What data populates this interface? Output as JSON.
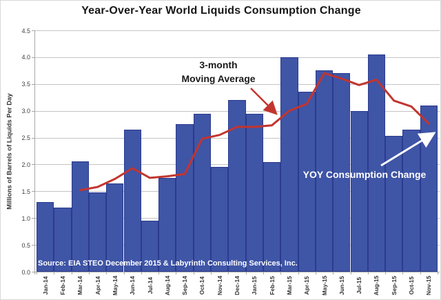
{
  "chart_data": {
    "type": "bar",
    "title": "Year-Over-Year World Liquids Consumption Change",
    "xlabel": "",
    "ylabel": "Millions of Barrels of Liquids Per Day",
    "ylim": [
      0,
      4.5
    ],
    "ytick_step": 0.5,
    "ytick_labels": [
      "0.0",
      "0.5",
      "1.0",
      "1.5",
      "2.0",
      "2.5",
      "3.0",
      "3.5",
      "4.0",
      "4.5"
    ],
    "grid": true,
    "legend_position": "none",
    "categories": [
      "Jan-14",
      "Feb-14",
      "Mar-14",
      "Apr-14",
      "May-14",
      "Jun-14",
      "Jul-14",
      "Aug-14",
      "Sep-14",
      "Oct-14",
      "Nov-14",
      "Dec-14",
      "Jan-15",
      "Feb-15",
      "Mar-15",
      "Apr-15",
      "May-15",
      "Jun-15",
      "Jul-15",
      "Aug-15",
      "Sep-15",
      "Oct-15",
      "Nov-15"
    ],
    "series": [
      {
        "name": "YOY Consumption Change",
        "type": "bar",
        "values": [
          1.3,
          1.2,
          2.06,
          1.48,
          1.65,
          2.65,
          0.95,
          1.75,
          2.75,
          2.95,
          1.95,
          3.2,
          2.95,
          2.05,
          4.0,
          3.35,
          3.75,
          3.7,
          3.0,
          4.05,
          2.53,
          2.65,
          3.1
        ]
      },
      {
        "name": "3-month Moving Average",
        "type": "line",
        "values": [
          null,
          null,
          1.52,
          1.58,
          1.73,
          1.93,
          1.75,
          1.78,
          1.82,
          2.48,
          2.55,
          2.7,
          2.7,
          2.73,
          3.0,
          3.13,
          3.7,
          3.6,
          3.48,
          3.58,
          3.19,
          3.08,
          2.76
        ]
      }
    ],
    "annotations": [
      {
        "id": "ma-label",
        "lines": [
          "3-month",
          "Moving Average"
        ],
        "color": "#1a1a1a",
        "arrow_color": "#c2352f"
      },
      {
        "id": "yoy-label",
        "text": "YOY Consumption Change",
        "color": "#ffffff",
        "arrow_color": "#ffffff"
      }
    ],
    "source_note": "Source: EIA STEO December 2015 & Labyrinth Consulting Services, Inc.",
    "colors": {
      "bar_fill": "#3F55A6",
      "bar_border": "#2B3B8F",
      "ma_line": "#C2352F",
      "gridline": "#C4C4C4",
      "axis": "#A6A6A6",
      "title_text": "#161616",
      "axis_text": "#404040",
      "source_text": "#FFFFFF"
    }
  }
}
